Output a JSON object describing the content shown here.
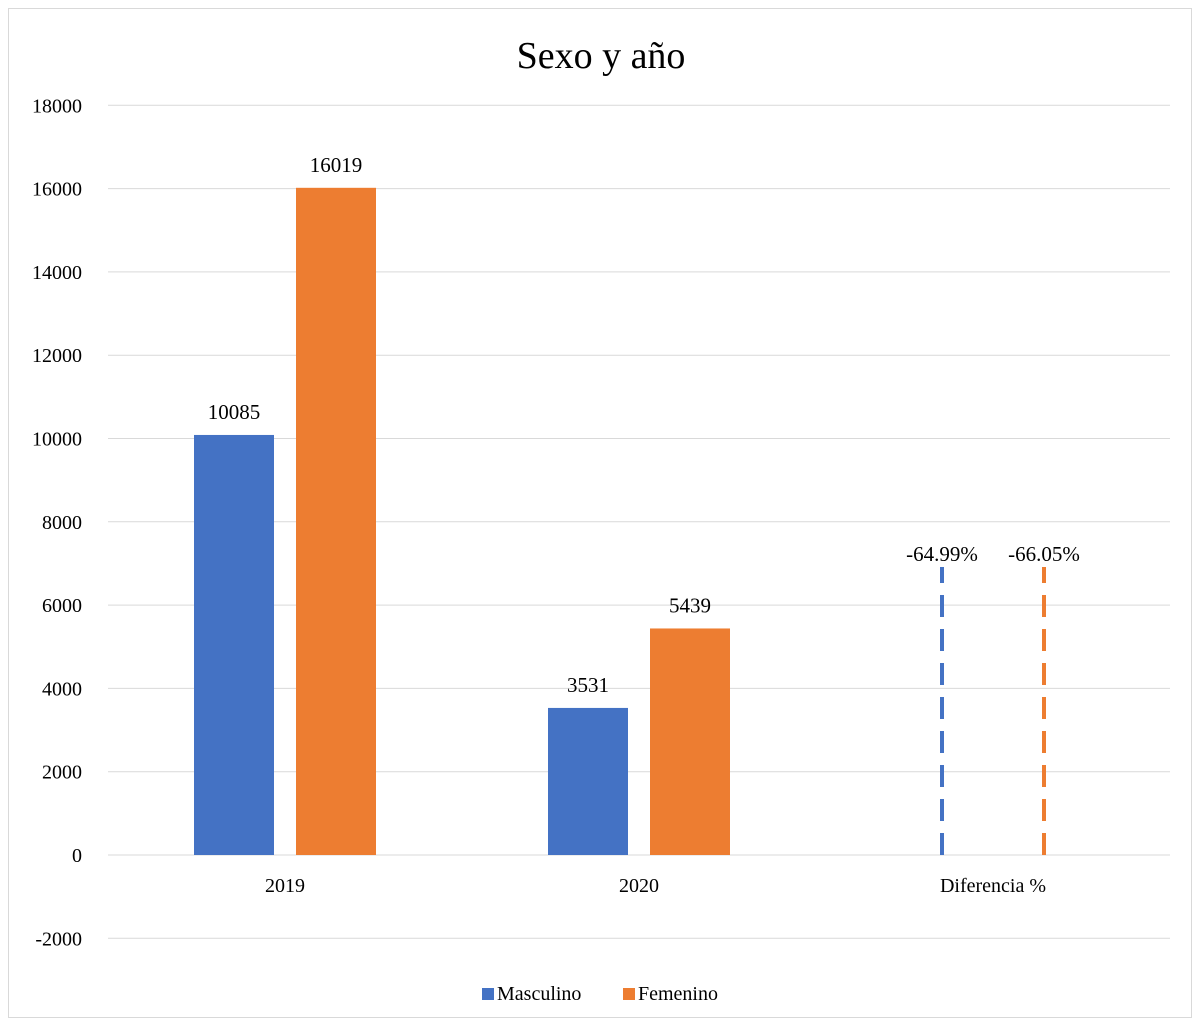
{
  "chart_data": {
    "type": "bar",
    "title": "Sexo y año",
    "categories": [
      "2019",
      "2020",
      "Diferencia %"
    ],
    "series": [
      {
        "name": "Masculino",
        "color": "#4472C4",
        "values": [
          10085,
          3531,
          -64.99
        ],
        "labels": [
          "10085",
          "3531",
          "-64.99%"
        ]
      },
      {
        "name": "Femenino",
        "color": "#ED7D31",
        "values": [
          16019,
          5439,
          -66.05
        ],
        "labels": [
          "16019",
          "5439",
          "-66.05%"
        ]
      }
    ],
    "ylim": [
      -2000,
      18000
    ],
    "yticks": [
      "18000",
      "16000",
      "14000",
      "12000",
      "10000",
      "8000",
      "6000",
      "4000",
      "2000",
      "0",
      "-2000"
    ],
    "grid": true,
    "legend_position": "bottom",
    "xlabel": "",
    "ylabel": ""
  }
}
